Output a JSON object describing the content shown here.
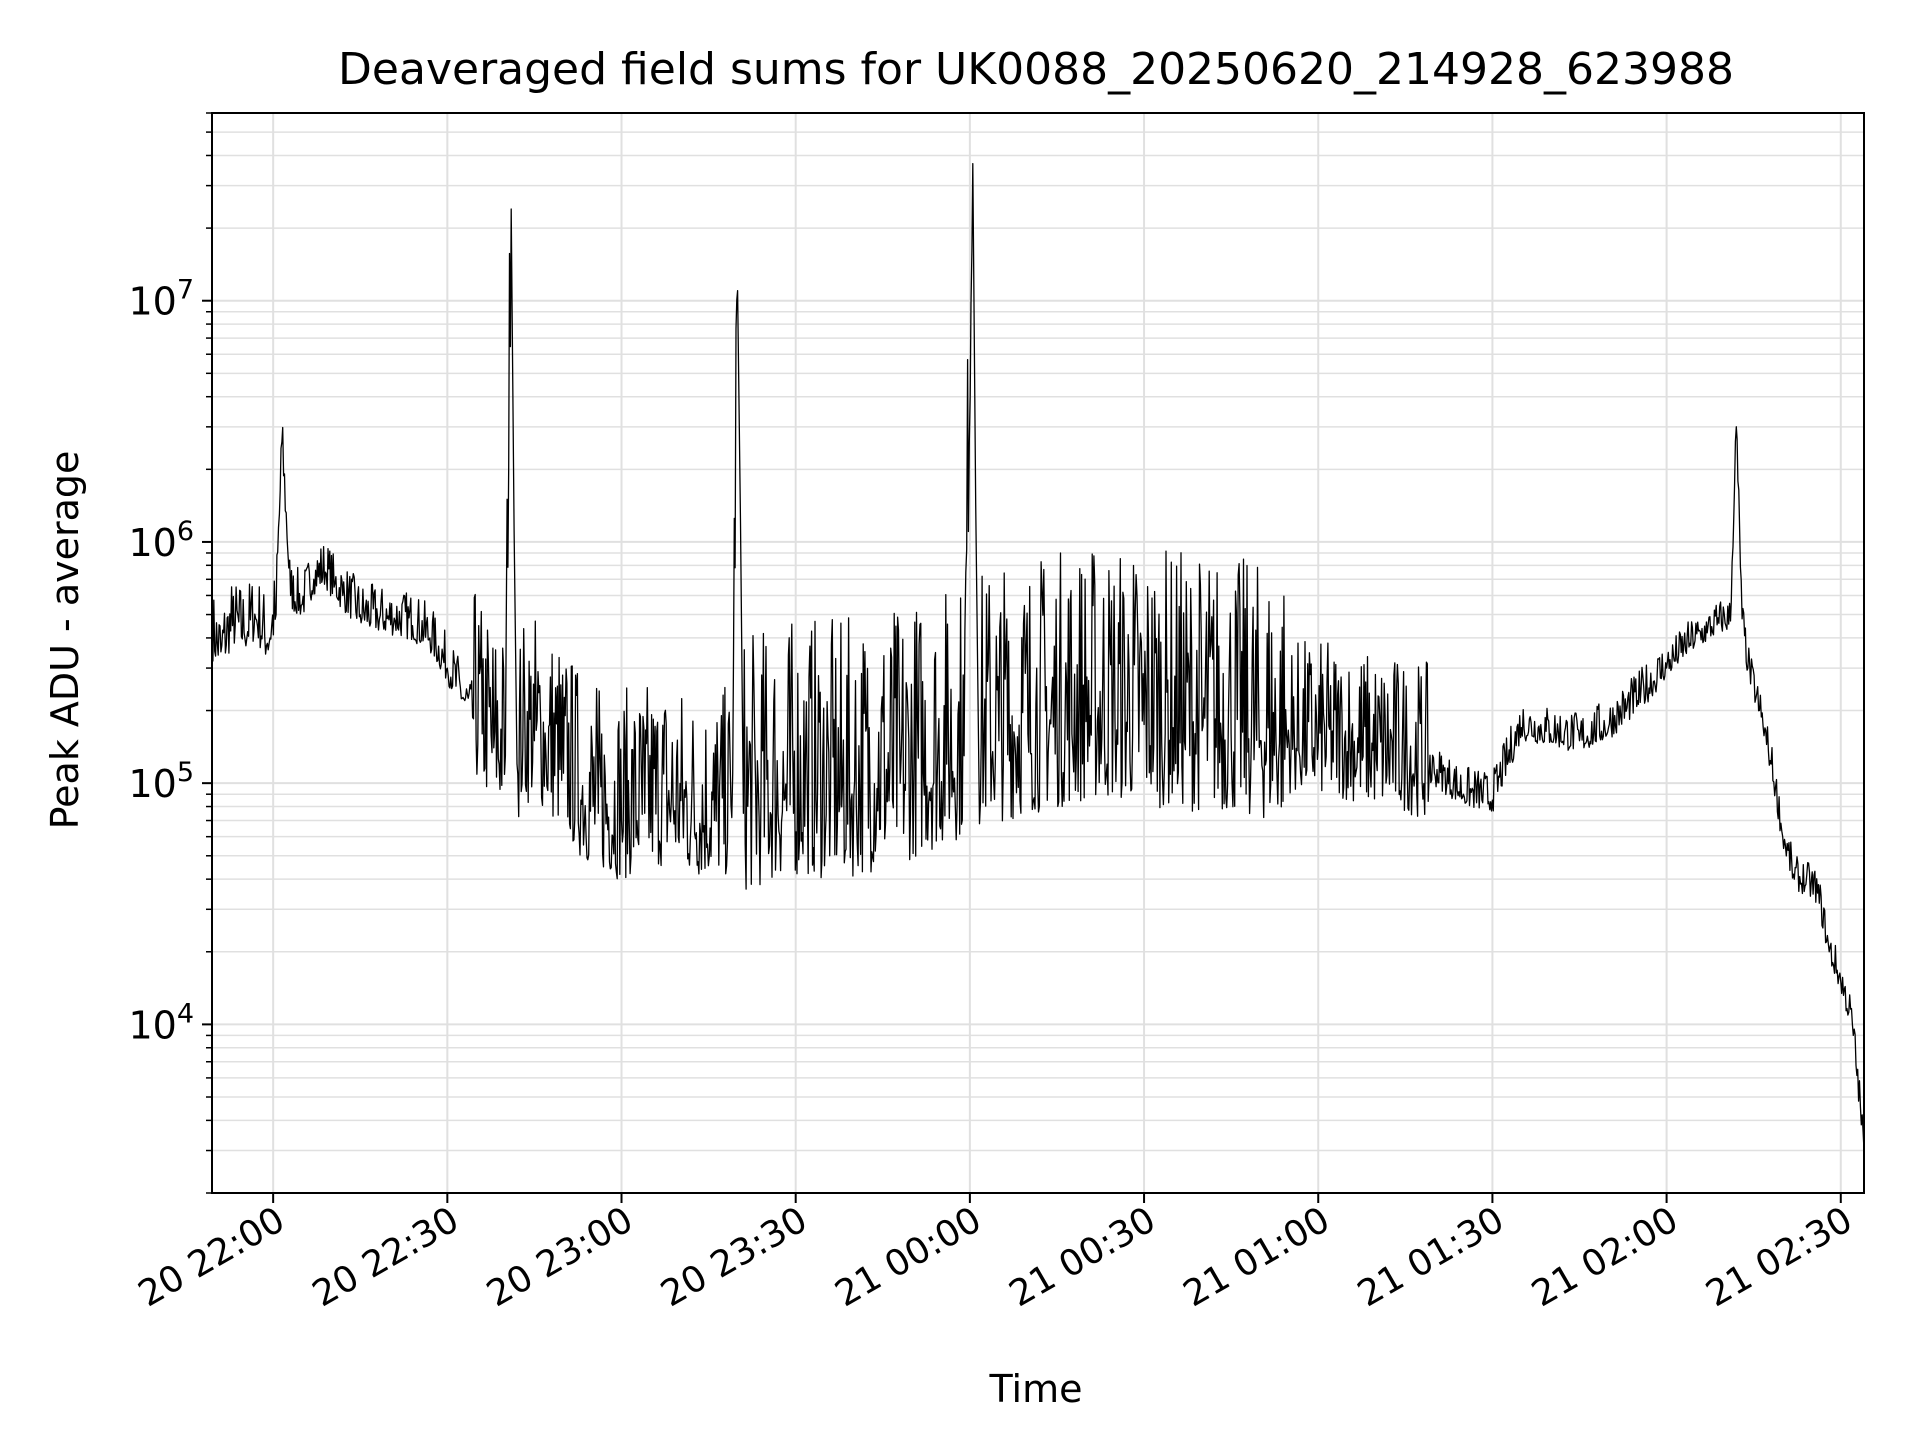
{
  "chart_data": {
    "type": "line",
    "title": "Deaveraged field sums for UK0088_20250620_214928_623988",
    "xlabel": "Time",
    "ylabel": "Peak ADU - average",
    "yscale": "log",
    "grid": true,
    "legend": "none",
    "xlim": [
      "2025-06-20 21:49:28",
      "2025-06-21 02:34:00"
    ],
    "ylim": [
      2000,
      60000000
    ],
    "x_ticks": [
      {
        "t": "2025-06-20 22:00",
        "label": "20 22:00"
      },
      {
        "t": "2025-06-20 22:30",
        "label": "20 22:30"
      },
      {
        "t": "2025-06-20 23:00",
        "label": "20 23:00"
      },
      {
        "t": "2025-06-20 23:30",
        "label": "20 23:30"
      },
      {
        "t": "2025-06-21 00:00",
        "label": "21 00:00"
      },
      {
        "t": "2025-06-21 00:30",
        "label": "21 00:30"
      },
      {
        "t": "2025-06-21 01:00",
        "label": "21 01:00"
      },
      {
        "t": "2025-06-21 01:30",
        "label": "21 01:30"
      },
      {
        "t": "2025-06-21 02:00",
        "label": "21 02:00"
      },
      {
        "t": "2025-06-21 02:30",
        "label": "21 02:30"
      }
    ],
    "y_ticks": [
      {
        "value": 10000,
        "base": "10",
        "exp": "4"
      },
      {
        "value": 100000,
        "base": "10",
        "exp": "5"
      },
      {
        "value": 1000000,
        "base": "10",
        "exp": "6"
      },
      {
        "value": 10000000,
        "base": "10",
        "exp": "7"
      }
    ],
    "colors": {
      "line": "#000000",
      "grid": "#e0e0e0",
      "axes": "#000000"
    },
    "series": [
      {
        "x": [
          "2025-06-20 21:49:28",
          "2025-06-20 21:51:00",
          "2025-06-20 21:53:00",
          "2025-06-20 21:55:00",
          "2025-06-20 21:57:00",
          "2025-06-20 21:59:00",
          "2025-06-20 22:00:30",
          "2025-06-20 22:01:30",
          "2025-06-20 22:03:00",
          "2025-06-20 22:05:00",
          "2025-06-20 22:07:00",
          "2025-06-20 22:09:00",
          "2025-06-20 22:10:30",
          "2025-06-20 22:12:00",
          "2025-06-20 22:15:00",
          "2025-06-20 22:18:00",
          "2025-06-20 22:21:00",
          "2025-06-20 22:24:00",
          "2025-06-20 22:27:00",
          "2025-06-20 22:30:00",
          "2025-06-20 22:33:00",
          "2025-06-20 22:36:00",
          "2025-06-20 22:38:00",
          "2025-06-20 22:40:00",
          "2025-06-20 22:41:00",
          "2025-06-20 22:42:00",
          "2025-06-20 22:43:00",
          "2025-06-20 22:45:00",
          "2025-06-20 22:47:00",
          "2025-06-20 22:50:00",
          "2025-06-20 22:53:00",
          "2025-06-20 22:56:00",
          "2025-06-20 23:00:00",
          "2025-06-20 23:04:00",
          "2025-06-20 23:08:00",
          "2025-06-20 23:12:00",
          "2025-06-20 23:16:00",
          "2025-06-20 23:19:00",
          "2025-06-20 23:20:00",
          "2025-06-20 23:21:00",
          "2025-06-20 23:24:00",
          "2025-06-20 23:28:00",
          "2025-06-20 23:32:00",
          "2025-06-20 23:36:00",
          "2025-06-20 23:40:00",
          "2025-06-20 23:44:00",
          "2025-06-20 23:48:00",
          "2025-06-20 23:52:00",
          "2025-06-20 23:56:00",
          "2025-06-20 23:59:00",
          "2025-06-21 00:00:30",
          "2025-06-21 00:01:30",
          "2025-06-21 00:05:00",
          "2025-06-21 00:10:00",
          "2025-06-21 00:15:00",
          "2025-06-21 00:20:00",
          "2025-06-21 00:25:00",
          "2025-06-21 00:30:00",
          "2025-06-21 00:35:00",
          "2025-06-21 00:40:00",
          "2025-06-21 00:45:00",
          "2025-06-21 00:50:00",
          "2025-06-21 00:55:00",
          "2025-06-21 01:00:00",
          "2025-06-21 01:05:00",
          "2025-06-21 01:10:00",
          "2025-06-21 01:15:00",
          "2025-06-21 01:20:00",
          "2025-06-21 01:25:00",
          "2025-06-21 01:30:00",
          "2025-06-21 01:35:00",
          "2025-06-21 01:40:00",
          "2025-06-21 01:45:00",
          "2025-06-21 01:50:00",
          "2025-06-21 01:55:00",
          "2025-06-21 02:00:00",
          "2025-06-21 02:04:00",
          "2025-06-21 02:07:00",
          "2025-06-21 02:09:00",
          "2025-06-21 02:11:00",
          "2025-06-21 02:12:00",
          "2025-06-21 02:13:00",
          "2025-06-21 02:14:00",
          "2025-06-21 02:16:00",
          "2025-06-21 02:18:00",
          "2025-06-21 02:20:00",
          "2025-06-21 02:22:00",
          "2025-06-21 02:24:00",
          "2025-06-21 02:26:00",
          "2025-06-21 02:28:00",
          "2025-06-21 02:30:00",
          "2025-06-21 02:32:00",
          "2025-06-21 02:34:00"
        ],
        "y": [
          400000,
          350000,
          450000,
          420000,
          480000,
          380000,
          500000,
          2600000,
          600000,
          550000,
          700000,
          750000,
          650000,
          600000,
          500000,
          480000,
          470000,
          450000,
          400000,
          300000,
          220000,
          160000,
          140000,
          130000,
          24000000,
          120000,
          140000,
          150000,
          130000,
          110000,
          85000,
          75000,
          70000,
          75000,
          80000,
          70000,
          70000,
          72000,
          11000000,
          75000,
          80000,
          85000,
          90000,
          85000,
          88000,
          95000,
          100000,
          110000,
          120000,
          130000,
          37000000,
          140000,
          150000,
          160000,
          170000,
          180000,
          180000,
          175000,
          170000,
          165000,
          160000,
          150000,
          145000,
          140000,
          135000,
          125000,
          120000,
          110000,
          90000,
          85000,
          170000,
          160000,
          150000,
          170000,
          220000,
          300000,
          380000,
          420000,
          460000,
          470000,
          3000000,
          480000,
          300000,
          200000,
          120000,
          60000,
          40000,
          38000,
          35000,
          20000,
          15000,
          10000,
          3000
        ]
      }
    ]
  }
}
